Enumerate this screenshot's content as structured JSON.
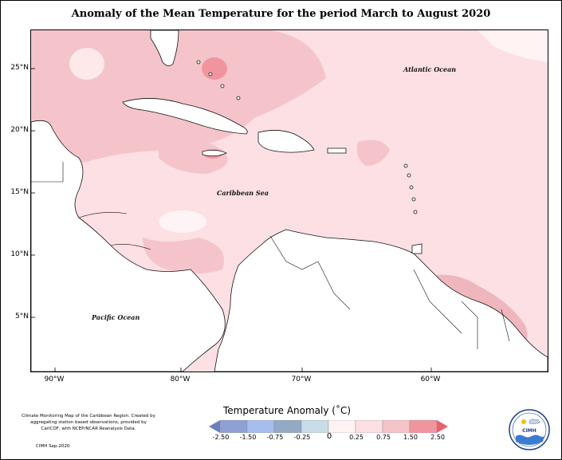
{
  "title": "Anomaly of the Mean Temperature for the period March to August 2020",
  "map": {
    "lat_labels": [
      "25°N",
      "20°N",
      "15°N",
      "10°N",
      "5°N"
    ],
    "lon_labels": [
      "90°W",
      "80°W",
      "70°W",
      "60°W"
    ],
    "ocean_labels": {
      "atlantic": "Atlantic Ocean",
      "caribbean": "Caribbean Sea",
      "pacific": "Pacific Ocean"
    }
  },
  "legend": {
    "title": "Temperature Anomaly (˚C)",
    "ticks": [
      "-2.50",
      "-1.50",
      "-0.75",
      "-0.25",
      "0",
      "0.25",
      "0.75",
      "1.50",
      "2.50"
    ],
    "colors": [
      "#6b7ec0",
      "#9db3e6",
      "#8ea6c2",
      "#bfd3e0",
      "#fff0f0",
      "#fde4e6",
      "#f2b8bf",
      "#f28892",
      "#e8616c"
    ]
  },
  "credits": {
    "text": "Climate Monitoring Map of the Caribbean Region. Created by aggregating station based observations, provided by CariCOF, with NCEP/NCAR Reanalysis Data.",
    "date": "CIMH Sep-2020"
  },
  "logo": {
    "label": "CIMH"
  }
}
